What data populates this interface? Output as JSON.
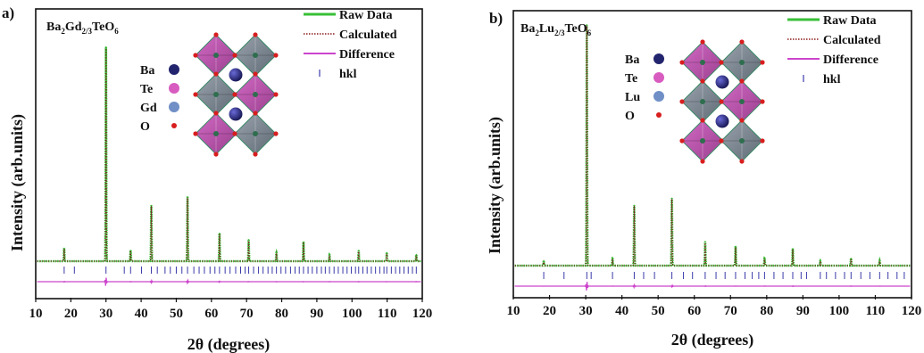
{
  "panels": [
    {
      "id": "a",
      "panel_label": "a)",
      "compound": {
        "base1": "Ba",
        "sub1": "2",
        "base2": "Gd",
        "sub2": "2/3",
        "base3": "TeO",
        "sub3": "6"
      },
      "inset_legend": [
        {
          "label": "Ba",
          "color": "#23246e"
        },
        {
          "label": "Te",
          "color": "#d85cc0"
        },
        {
          "label": "Gd",
          "color": "#6f8fc6"
        },
        {
          "label": "O",
          "color": "#d81e1e"
        }
      ]
    },
    {
      "id": "b",
      "panel_label": "b)",
      "compound": {
        "base1": "Ba",
        "sub1": "2",
        "base2": "Lu",
        "sub2": "2/3",
        "base3": "TeO",
        "sub3": "6"
      },
      "inset_legend": [
        {
          "label": "Ba",
          "color": "#23246e"
        },
        {
          "label": "Te",
          "color": "#d85cc0"
        },
        {
          "label": "Lu",
          "color": "#6f8fc6"
        },
        {
          "label": "O",
          "color": "#d81e1e"
        }
      ]
    }
  ],
  "legend": [
    {
      "label": "Raw Data",
      "color": "#38c038",
      "style": "solid"
    },
    {
      "label": "Calculated",
      "color": "#8b1a1a",
      "style": "dotted"
    },
    {
      "label": "Difference",
      "color": "#cc44cc",
      "style": "solid"
    },
    {
      "label": "hkl",
      "color": "#3a3aaa",
      "style": "tick"
    }
  ],
  "chart_data": [
    {
      "type": "line",
      "title": "",
      "xlabel": "2θ (degrees)",
      "ylabel": "Intensity (arb.units)",
      "xlim": [
        10,
        120
      ],
      "ylim": [
        -0.12,
        1.05
      ],
      "xticks": [
        10,
        20,
        30,
        40,
        50,
        60,
        70,
        80,
        90,
        100,
        110,
        120
      ],
      "baseline": 0.03,
      "peak_width": 0.12,
      "peaks": [
        {
          "x": 18.1,
          "y": 0.06
        },
        {
          "x": 30.0,
          "y": 1.0
        },
        {
          "x": 37.0,
          "y": 0.05
        },
        {
          "x": 42.9,
          "y": 0.26
        },
        {
          "x": 53.2,
          "y": 0.3
        },
        {
          "x": 62.3,
          "y": 0.13
        },
        {
          "x": 70.6,
          "y": 0.1
        },
        {
          "x": 78.5,
          "y": 0.04
        },
        {
          "x": 86.2,
          "y": 0.09
        },
        {
          "x": 93.6,
          "y": 0.03
        },
        {
          "x": 101.9,
          "y": 0.05
        },
        {
          "x": 109.9,
          "y": 0.04
        },
        {
          "x": 118.3,
          "y": 0.03
        }
      ],
      "series": [
        {
          "name": "Raw Data"
        },
        {
          "name": "Calculated"
        },
        {
          "name": "Difference"
        }
      ],
      "hkl_positions": [
        18.1,
        21.0,
        30.0,
        35.2,
        37.0,
        40.1,
        42.9,
        44.6,
        46.8,
        48.3,
        50.0,
        51.6,
        53.2,
        55.0,
        56.5,
        58.0,
        59.6,
        61.0,
        62.3,
        63.9,
        65.3,
        66.9,
        68.3,
        69.6,
        70.6,
        72.0,
        73.4,
        74.7,
        76.1,
        77.3,
        78.5,
        79.8,
        81.1,
        82.5,
        83.8,
        85.0,
        86.2,
        87.5,
        88.7,
        90.0,
        91.3,
        92.4,
        93.6,
        94.9,
        96.1,
        97.4,
        98.6,
        99.8,
        101.0,
        101.9,
        103.1,
        104.3,
        105.5,
        106.7,
        107.9,
        109.1,
        109.9,
        111.2,
        112.4,
        113.6,
        114.8,
        116.0,
        117.2,
        118.3
      ]
    },
    {
      "type": "line",
      "title": "",
      "xlabel": "2θ (degrees)",
      "ylabel": "Intensity (arb.units)",
      "xlim": [
        10,
        120
      ],
      "ylim": [
        -0.12,
        1.05
      ],
      "xticks": [
        10,
        20,
        30,
        40,
        50,
        60,
        70,
        80,
        90,
        100,
        110,
        120
      ],
      "baseline": 0.03,
      "peak_width": 0.12,
      "peaks": [
        {
          "x": 18.4,
          "y": 0.02
        },
        {
          "x": 30.3,
          "y": 1.0
        },
        {
          "x": 37.4,
          "y": 0.03
        },
        {
          "x": 43.4,
          "y": 0.25
        },
        {
          "x": 53.8,
          "y": 0.28
        },
        {
          "x": 63.0,
          "y": 0.1
        },
        {
          "x": 71.4,
          "y": 0.08
        },
        {
          "x": 79.4,
          "y": 0.03
        },
        {
          "x": 87.2,
          "y": 0.07
        },
        {
          "x": 94.8,
          "y": 0.02
        },
        {
          "x": 103.3,
          "y": 0.03
        },
        {
          "x": 111.2,
          "y": 0.02
        }
      ],
      "series": [
        {
          "name": "Raw Data"
        },
        {
          "name": "Calculated"
        },
        {
          "name": "Difference"
        }
      ],
      "hkl_positions": [
        18.4,
        24.0,
        30.3,
        31.5,
        37.4,
        43.4,
        46.0,
        49.0,
        53.8,
        57.0,
        59.5,
        63.0,
        66.0,
        68.5,
        71.4,
        74.0,
        76.0,
        77.8,
        79.4,
        82.0,
        84.5,
        87.2,
        89.5,
        91.0,
        94.8,
        96.5,
        99.0,
        101.5,
        103.3,
        106.0,
        108.5,
        111.2,
        113.5,
        116.0,
        118.0
      ]
    }
  ]
}
